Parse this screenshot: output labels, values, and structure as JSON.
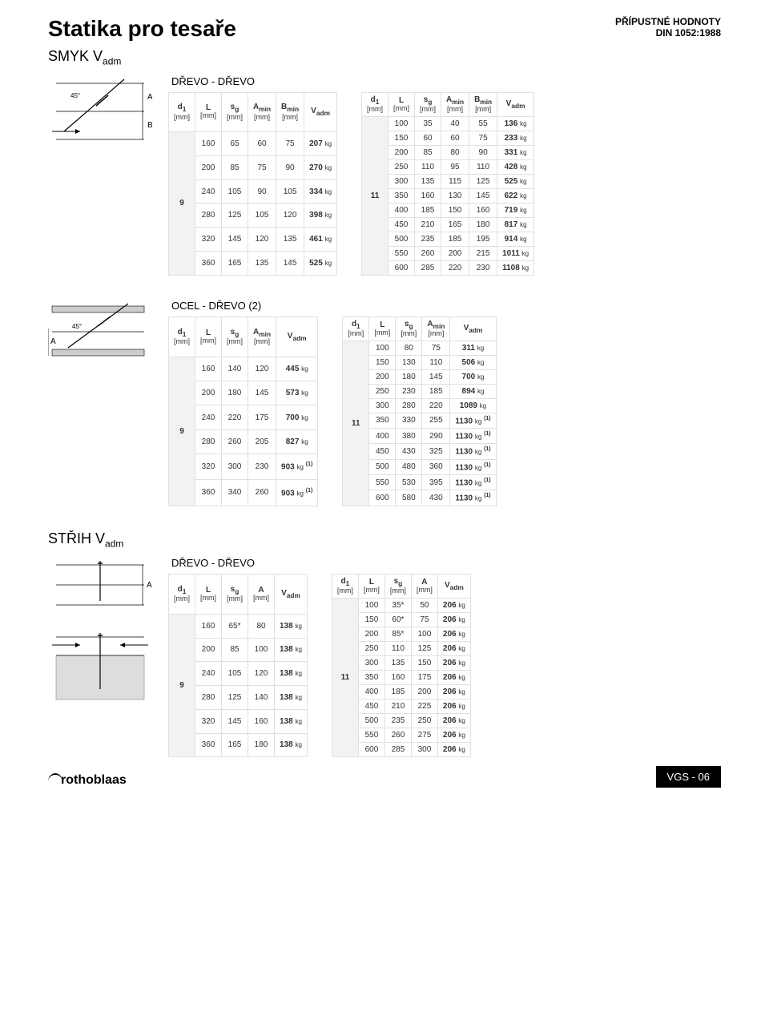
{
  "title": "Statika pro tesaře",
  "din_line1": "PŘÍPUSTNÉ HODNOTY",
  "din_line2": "DIN 1052:1988",
  "shear_heading": "SMYK V",
  "shear_sub": "adm",
  "stripping_heading": "STŘIH V",
  "stripping_sub": "adm",
  "section1": {
    "label": "DŘEVO - DŘEVO",
    "cols_left": [
      "d₁",
      "L",
      "sg",
      "Amin",
      "Bmin",
      "Vadm"
    ],
    "cols_right": [
      "d₁",
      "L",
      "sg",
      "Amin",
      "Bmin",
      "Vadm"
    ],
    "unit": "[mm]",
    "d1_left": "9",
    "rows_left": [
      [
        "160",
        "65",
        "60",
        "75",
        "207 kg"
      ],
      [
        "200",
        "85",
        "75",
        "90",
        "270 kg"
      ],
      [
        "240",
        "105",
        "90",
        "105",
        "334 kg"
      ],
      [
        "280",
        "125",
        "105",
        "120",
        "398 kg"
      ],
      [
        "320",
        "145",
        "120",
        "135",
        "461 kg"
      ],
      [
        "360",
        "165",
        "135",
        "145",
        "525 kg"
      ]
    ],
    "d1_right": "11",
    "rows_right": [
      [
        "100",
        "35",
        "40",
        "55",
        "136 kg"
      ],
      [
        "150",
        "60",
        "60",
        "75",
        "233 kg"
      ],
      [
        "200",
        "85",
        "80",
        "90",
        "331 kg"
      ],
      [
        "250",
        "110",
        "95",
        "110",
        "428 kg"
      ],
      [
        "300",
        "135",
        "115",
        "125",
        "525 kg"
      ],
      [
        "350",
        "160",
        "130",
        "145",
        "622 kg"
      ],
      [
        "400",
        "185",
        "150",
        "160",
        "719 kg"
      ],
      [
        "450",
        "210",
        "165",
        "180",
        "817 kg"
      ],
      [
        "500",
        "235",
        "185",
        "195",
        "914 kg"
      ],
      [
        "550",
        "260",
        "200",
        "215",
        "1011 kg"
      ],
      [
        "600",
        "285",
        "220",
        "230",
        "1108 kg"
      ]
    ]
  },
  "section2": {
    "label": "OCEL - DŘEVO (2)",
    "cols_left": [
      "d₁",
      "L",
      "sg",
      "Amin",
      "Vadm"
    ],
    "cols_right": [
      "d₁",
      "L",
      "sg",
      "Amin",
      "Vadm"
    ],
    "unit": "[mm]",
    "d1_left": "9",
    "rows_left": [
      [
        "160",
        "140",
        "120",
        "445 kg",
        ""
      ],
      [
        "200",
        "180",
        "145",
        "573 kg",
        ""
      ],
      [
        "240",
        "220",
        "175",
        "700 kg",
        ""
      ],
      [
        "280",
        "260",
        "205",
        "827 kg",
        ""
      ],
      [
        "320",
        "300",
        "230",
        "903 kg",
        "(1)"
      ],
      [
        "360",
        "340",
        "260",
        "903 kg",
        "(1)"
      ]
    ],
    "d1_right": "11",
    "rows_right": [
      [
        "100",
        "80",
        "75",
        "311 kg",
        ""
      ],
      [
        "150",
        "130",
        "110",
        "506 kg",
        ""
      ],
      [
        "200",
        "180",
        "145",
        "700 kg",
        ""
      ],
      [
        "250",
        "230",
        "185",
        "894 kg",
        ""
      ],
      [
        "300",
        "280",
        "220",
        "1089 kg",
        ""
      ],
      [
        "350",
        "330",
        "255",
        "1130 kg",
        "(1)"
      ],
      [
        "400",
        "380",
        "290",
        "1130 kg",
        "(1)"
      ],
      [
        "450",
        "430",
        "325",
        "1130 kg",
        "(1)"
      ],
      [
        "500",
        "480",
        "360",
        "1130 kg",
        "(1)"
      ],
      [
        "550",
        "530",
        "395",
        "1130 kg",
        "(1)"
      ],
      [
        "600",
        "580",
        "430",
        "1130 kg",
        "(1)"
      ]
    ]
  },
  "section3": {
    "label": "DŘEVO - DŘEVO",
    "cols_left": [
      "d₁",
      "L",
      "sg",
      "A",
      "Vadm"
    ],
    "cols_right": [
      "d₁",
      "L",
      "sg",
      "A",
      "Vadm"
    ],
    "unit": "[mm]",
    "d1_left": "9",
    "rows_left": [
      [
        "160",
        "65*",
        "80",
        "138 kg"
      ],
      [
        "200",
        "85",
        "100",
        "138 kg"
      ],
      [
        "240",
        "105",
        "120",
        "138 kg"
      ],
      [
        "280",
        "125",
        "140",
        "138 kg"
      ],
      [
        "320",
        "145",
        "160",
        "138 kg"
      ],
      [
        "360",
        "165",
        "180",
        "138 kg"
      ]
    ],
    "d1_right": "11",
    "rows_right": [
      [
        "100",
        "35*",
        "50",
        "206 kg"
      ],
      [
        "150",
        "60*",
        "75",
        "206 kg"
      ],
      [
        "200",
        "85*",
        "100",
        "206 kg"
      ],
      [
        "250",
        "110",
        "125",
        "206 kg"
      ],
      [
        "300",
        "135",
        "150",
        "206 kg"
      ],
      [
        "350",
        "160",
        "175",
        "206 kg"
      ],
      [
        "400",
        "185",
        "200",
        "206 kg"
      ],
      [
        "450",
        "210",
        "225",
        "206 kg"
      ],
      [
        "500",
        "235",
        "250",
        "206 kg"
      ],
      [
        "550",
        "260",
        "275",
        "206 kg"
      ],
      [
        "600",
        "285",
        "300",
        "206 kg"
      ]
    ]
  },
  "logo": "rothoblaas",
  "page_code": "VGS - 06"
}
